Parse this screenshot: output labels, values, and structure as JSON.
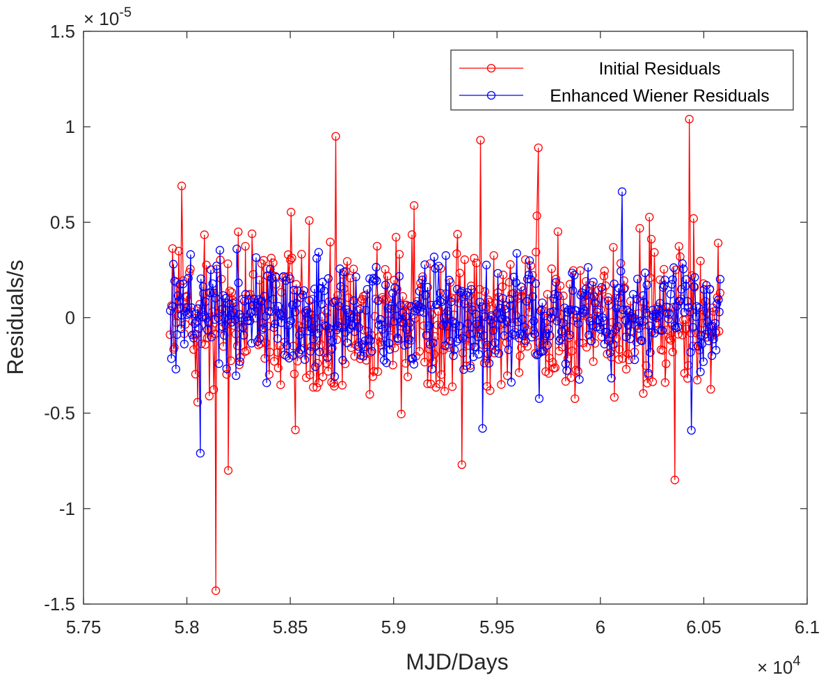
{
  "chart_data": {
    "type": "line",
    "xlabel": "MJD/Days",
    "ylabel": "Residuals/s",
    "x_exponent_label": "× 10",
    "x_exponent_power": "4",
    "y_exponent_label": "× 10",
    "y_exponent_power": "-5",
    "xlim": [
      57500,
      61000
    ],
    "ylim": [
      -1.5e-05,
      1.5e-05
    ],
    "x_ticks": [
      57500,
      58000,
      58500,
      59000,
      59500,
      60000,
      60500,
      61000
    ],
    "x_tick_labels": [
      "5.75",
      "5.8",
      "5.85",
      "5.9",
      "5.95",
      "6",
      "6.05",
      "6.1"
    ],
    "y_ticks": [
      -1.5e-05,
      -1e-05,
      -5e-06,
      0,
      5e-06,
      1e-05,
      1.5e-05
    ],
    "y_tick_labels": [
      "-1.5",
      "-1",
      "-0.5",
      "0",
      "0.5",
      "1",
      "1.5"
    ],
    "grid": false,
    "legend_position": "top-right",
    "markers": "open-circle",
    "x_range_data": [
      57920,
      60580
    ],
    "series": [
      {
        "name": "Initial Residuals",
        "color": "#ff0000",
        "approx_points": 520,
        "notable_points": [
          {
            "x": 57975,
            "y": 6.9e-06
          },
          {
            "x": 58140,
            "y": -1.43e-05
          },
          {
            "x": 58200,
            "y": -8e-06
          },
          {
            "x": 58720,
            "y": 9.5e-06
          },
          {
            "x": 59420,
            "y": 9.3e-06
          },
          {
            "x": 59700,
            "y": 8.9e-06
          },
          {
            "x": 60430,
            "y": 1.04e-05
          },
          {
            "x": 60360,
            "y": -8.5e-06
          },
          {
            "x": 59330,
            "y": -7.7e-06
          }
        ]
      },
      {
        "name": "Enhanced Wiener Residuals",
        "color": "#0000ff",
        "approx_points": 520,
        "notable_points": [
          {
            "x": 58065,
            "y": -7.1e-06
          },
          {
            "x": 60105,
            "y": 6.6e-06
          },
          {
            "x": 60440,
            "y": -5.9e-06
          },
          {
            "x": 59430,
            "y": -5.8e-06
          }
        ]
      }
    ]
  }
}
